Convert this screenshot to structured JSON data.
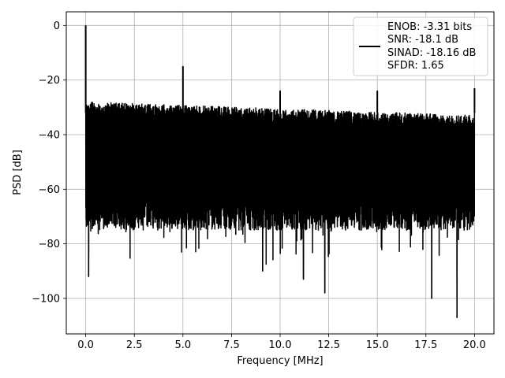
{
  "chart_data": {
    "type": "line",
    "title": "",
    "xlabel": "Frequency [MHz]",
    "ylabel": "PSD [dB]",
    "xlim": [
      -1.0,
      21.0
    ],
    "ylim": [
      -113,
      5
    ],
    "xticks": [
      0.0,
      2.5,
      5.0,
      7.5,
      10.0,
      12.5,
      15.0,
      17.5,
      20.0
    ],
    "xtick_labels": [
      "0.0",
      "2.5",
      "5.0",
      "7.5",
      "10.0",
      "12.5",
      "15.0",
      "17.5",
      "20.0"
    ],
    "yticks": [
      0,
      -20,
      -40,
      -60,
      -80,
      -100
    ],
    "ytick_labels": [
      "0",
      "−20",
      "−40",
      "−60",
      "−80",
      "−100"
    ],
    "grid": true,
    "legend_position": "top-right",
    "legend": {
      "line_color": "#000000",
      "lines": [
        "ENOB: -3.31 bits",
        "SNR: -18.1 dB",
        "SINAD: -18.16 dB",
        "SFDR: 1.65"
      ]
    },
    "series": [
      {
        "color": "#000000",
        "x_range": [
          0.0,
          20.0
        ],
        "noise_floor_db": {
          "upper_envelope": [
            -27,
            -32
          ],
          "typical_min": -75,
          "lower_extremes": -90
        },
        "peaks": [
          {
            "x": 0.0,
            "y": 0
          },
          {
            "x": 5.0,
            "y": -15
          },
          {
            "x": 10.0,
            "y": -24
          },
          {
            "x": 15.0,
            "y": -24
          },
          {
            "x": 20.0,
            "y": -23
          }
        ],
        "dips": [
          {
            "x": 0.15,
            "y": -92
          },
          {
            "x": 12.3,
            "y": -98
          },
          {
            "x": 17.8,
            "y": -100
          },
          {
            "x": 19.1,
            "y": -107
          },
          {
            "x": 9.1,
            "y": -90
          },
          {
            "x": 11.2,
            "y": -93
          }
        ]
      }
    ]
  }
}
